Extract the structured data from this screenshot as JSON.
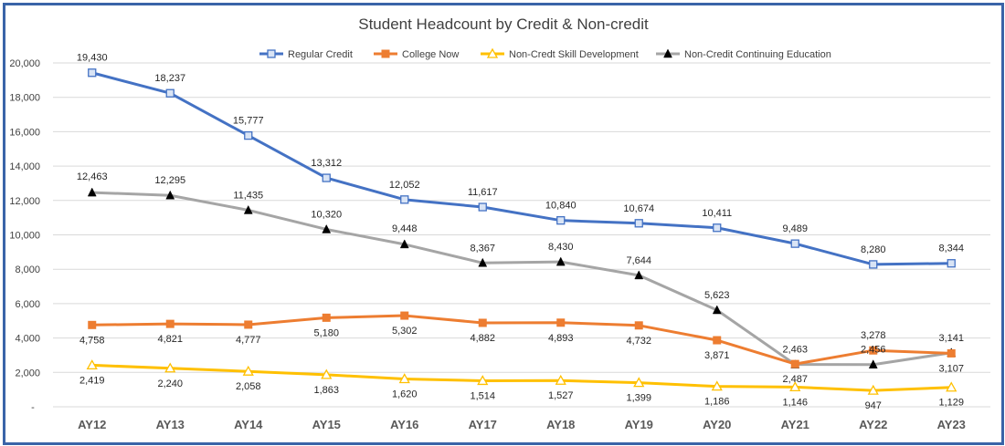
{
  "chart_data": {
    "type": "line",
    "title": "Student Headcount by Credit & Non-credit",
    "xlabel": "",
    "ylabel": "",
    "categories": [
      "AY12",
      "AY13",
      "AY14",
      "AY15",
      "AY16",
      "AY17",
      "AY18",
      "AY19",
      "AY20",
      "AY21",
      "AY22",
      "AY23"
    ],
    "ylim": [
      0,
      20000
    ],
    "y_ticks": [
      "-",
      "2,000",
      "4,000",
      "6,000",
      "8,000",
      "10,000",
      "12,000",
      "14,000",
      "16,000",
      "18,000",
      "20,000"
    ],
    "grid": true,
    "legend_position": "top",
    "series": [
      {
        "name": "Regular Credit",
        "color": "#4472c4",
        "marker": "square-open",
        "values": [
          19430,
          18237,
          15777,
          13312,
          12052,
          11617,
          10840,
          10674,
          10411,
          9489,
          8280,
          8344
        ],
        "labels": [
          "19,430",
          "18,237",
          "15,777",
          "13,312",
          "12,052",
          "11,617",
          "10,840",
          "10,674",
          "10,411",
          "9,489",
          "8,280",
          "8,344"
        ]
      },
      {
        "name": "College Now",
        "color": "#ed7d31",
        "marker": "square-filled",
        "values": [
          4758,
          4821,
          4777,
          5180,
          5302,
          4882,
          4893,
          4732,
          3871,
          2487,
          3278,
          3107
        ],
        "labels": [
          "4,758",
          "4,821",
          "4,777",
          "5,180",
          "5,302",
          "4,882",
          "4,893",
          "4,732",
          "3,871",
          "2,487",
          "3,278",
          "3,107"
        ]
      },
      {
        "name": "Non-Credt Skill Development",
        "color": "#ffc000",
        "marker": "triangle-open",
        "values": [
          2419,
          2240,
          2058,
          1863,
          1620,
          1514,
          1527,
          1399,
          1186,
          1146,
          947,
          1129
        ],
        "labels": [
          "2,419",
          "2,240",
          "2,058",
          "1,863",
          "1,620",
          "1,514",
          "1,527",
          "1,399",
          "1,186",
          "1,146",
          "947",
          "1,129"
        ]
      },
      {
        "name": "Non-Credit Continuing Education",
        "color": "#a5a5a5",
        "marker": "triangle-filled",
        "values": [
          12463,
          12295,
          11435,
          10320,
          9448,
          8367,
          8430,
          7644,
          5623,
          2463,
          2456,
          3141
        ],
        "labels": [
          "12,463",
          "12,295",
          "11,435",
          "10,320",
          "9,448",
          "8,367",
          "8,430",
          "7,644",
          "5,623",
          "2,463",
          "2,456",
          "3,141"
        ]
      }
    ]
  }
}
